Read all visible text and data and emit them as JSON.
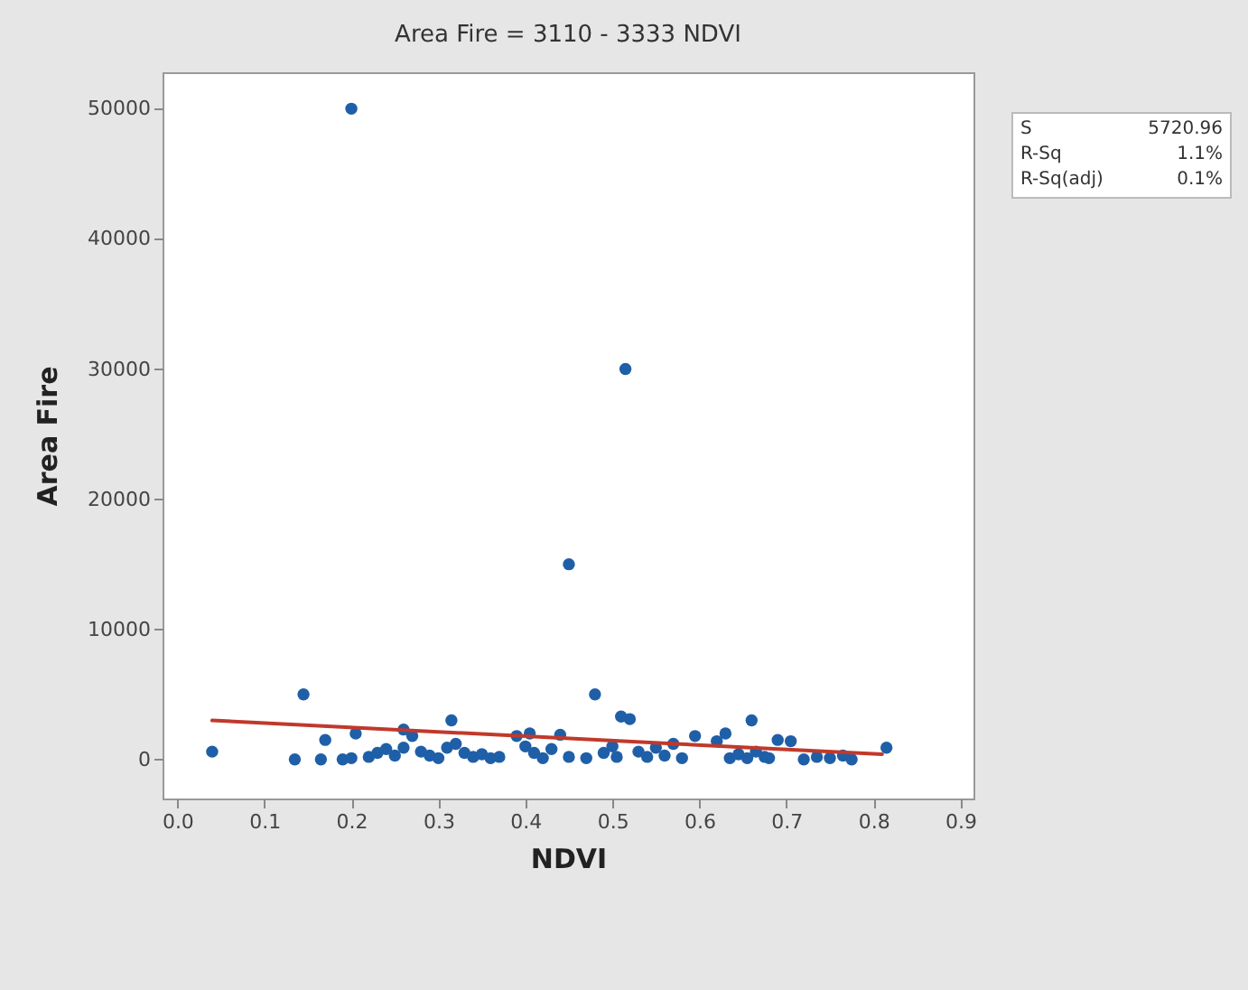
{
  "chart_data": {
    "type": "scatter",
    "title": "Area Fire = 3110 - 3333 NDVI",
    "xlabel": "NDVI",
    "ylabel": "Area Fire",
    "xlim": [
      -0.017,
      0.915
    ],
    "ylim": [
      -3000,
      52800
    ],
    "xticks": [
      {
        "value": 0,
        "label": "0.0"
      },
      0.1,
      0.2,
      0.3,
      0.4,
      0.5,
      0.6,
      0.7,
      0.8,
      0.9
    ],
    "yticks": [
      0,
      10000,
      20000,
      30000,
      40000,
      50000
    ],
    "grid": false,
    "marker": "circle",
    "annotations": [
      "S",
      "5720.96",
      "R-Sq",
      "1.1%",
      "R-Sq(adj)",
      "0.1%"
    ],
    "series": [
      {
        "color": "#1f5fa8",
        "x": [
          0.2,
          0.515,
          0.45,
          0.145,
          0.48,
          0.51,
          0.52,
          0.66,
          0.315,
          0.26,
          0.04,
          0.135,
          0.165,
          0.17,
          0.19,
          0.2,
          0.205,
          0.22,
          0.23,
          0.24,
          0.25,
          0.26,
          0.27,
          0.28,
          0.29,
          0.3,
          0.31,
          0.32,
          0.33,
          0.34,
          0.35,
          0.36,
          0.37,
          0.39,
          0.4,
          0.405,
          0.41,
          0.42,
          0.43,
          0.44,
          0.45,
          0.47,
          0.49,
          0.5,
          0.505,
          0.53,
          0.54,
          0.55,
          0.56,
          0.57,
          0.58,
          0.595,
          0.62,
          0.63,
          0.635,
          0.645,
          0.655,
          0.665,
          0.675,
          0.68,
          0.69,
          0.705,
          0.72,
          0.735,
          0.75,
          0.765,
          0.775,
          0.815
        ],
        "values": [
          50000,
          30000,
          15000,
          5000,
          5000,
          3300,
          3100,
          3000,
          3000,
          2300,
          600,
          0,
          0,
          1500,
          0,
          100,
          2000,
          200,
          500,
          800,
          300,
          900,
          1800,
          600,
          300,
          100,
          900,
          1200,
          500,
          200,
          400,
          100,
          200,
          1800,
          1000,
          2000,
          500,
          100,
          800,
          1900,
          200,
          100,
          500,
          1000,
          200,
          600,
          200,
          900,
          300,
          1200,
          100,
          1800,
          1400,
          2000,
          100,
          400,
          100,
          600,
          200,
          100,
          1500,
          1400,
          0,
          200,
          100,
          300,
          0,
          900
        ]
      },
      {
        "type": "line",
        "marker": "none",
        "color": "#c0392b",
        "x": [
          0.04,
          0.81
        ],
        "values": [
          3000,
          400
        ]
      }
    ]
  }
}
